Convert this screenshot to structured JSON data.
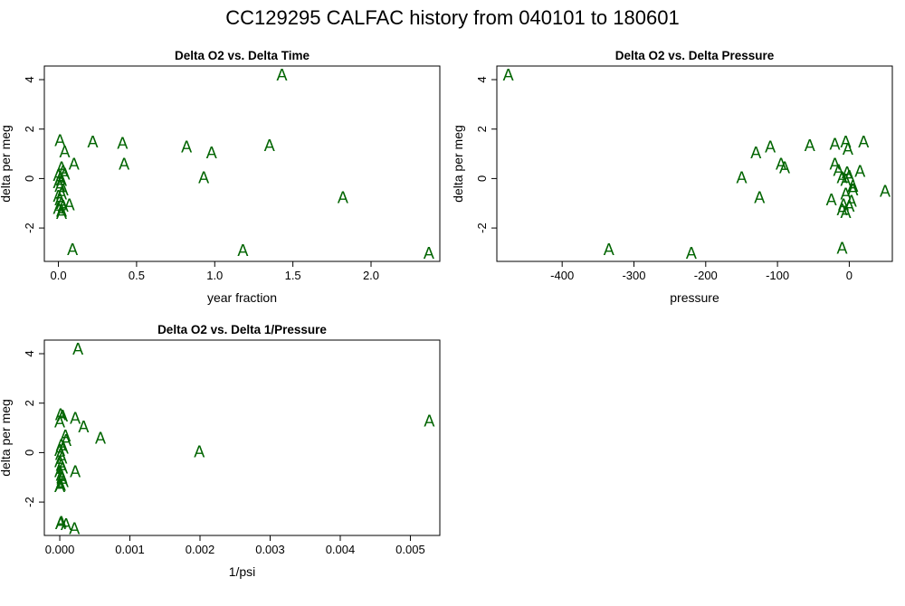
{
  "title": "CC129295   CALFAC history from  040101  to  180601",
  "colors": {
    "points": "#006400",
    "axis": "#000000"
  },
  "chart_data": [
    {
      "type": "scatter",
      "title": "Delta O2 vs. Delta Time",
      "xlabel": "year fraction",
      "ylabel": "delta per meg",
      "marker": "A",
      "xlim": [
        -0.09,
        2.44
      ],
      "ylim": [
        -3.35,
        4.55
      ],
      "xticks": [
        0.0,
        0.5,
        1.0,
        1.5,
        2.0
      ],
      "xtick_labels": [
        "0.0",
        "0.5",
        "1.0",
        "1.5",
        "2.0"
      ],
      "yticks": [
        -2,
        0,
        2,
        4
      ],
      "ytick_labels": [
        "-2",
        "0",
        "2",
        "4"
      ],
      "x": [
        1.43,
        0.01,
        0.22,
        0.41,
        0.82,
        0.98,
        1.35,
        0.04,
        0.42,
        0.1,
        0.93,
        0.02,
        0.03,
        0.0,
        0.01,
        0.02,
        0.04,
        0.0,
        0.01,
        0.03,
        0.02,
        0.0,
        0.01,
        0.02,
        0.03,
        0.07,
        0.0,
        0.02,
        0.02,
        1.82,
        0.09,
        1.18,
        2.37
      ],
      "y": [
        4.2,
        1.55,
        1.5,
        1.45,
        1.3,
        1.05,
        1.35,
        1.1,
        0.6,
        0.6,
        0.05,
        0.45,
        0.3,
        0.15,
        0.0,
        -0.05,
        0.2,
        -0.15,
        -0.3,
        -0.45,
        -0.6,
        -0.7,
        -0.85,
        -1.0,
        -1.1,
        -1.05,
        -1.2,
        -1.3,
        -1.4,
        -0.75,
        -2.85,
        -2.9,
        -3.0
      ]
    },
    {
      "type": "scatter",
      "title": "Delta O2 vs. Delta Pressure",
      "xlabel": "pressure",
      "ylabel": "delta per meg",
      "marker": "A",
      "xlim": [
        -491,
        60
      ],
      "ylim": [
        -3.35,
        4.55
      ],
      "xticks": [
        -400,
        -300,
        -200,
        -100,
        0
      ],
      "xtick_labels": [
        "-400",
        "-300",
        "-200",
        "-100",
        "0"
      ],
      "yticks": [
        -2,
        0,
        2,
        4
      ],
      "ytick_labels": [
        "-2",
        "0",
        "2",
        "4"
      ],
      "x": [
        -475,
        -55,
        -20,
        -5,
        20,
        -2,
        -110,
        -130,
        -95,
        -90,
        -150,
        -20,
        -15,
        -3,
        15,
        -10,
        -5,
        0,
        5,
        50,
        -5,
        5,
        3,
        -125,
        -25,
        -8,
        -10,
        0,
        -5,
        -335,
        -10,
        -220
      ],
      "y": [
        4.2,
        1.35,
        1.4,
        1.5,
        1.5,
        1.2,
        1.3,
        1.05,
        0.6,
        0.45,
        0.05,
        0.6,
        0.35,
        0.25,
        0.3,
        0.05,
        -0.05,
        0.1,
        -0.3,
        -0.5,
        -0.6,
        -0.45,
        -0.9,
        -0.75,
        -0.85,
        -1.05,
        -1.25,
        -1.1,
        -1.35,
        -2.85,
        -2.8,
        -3.0
      ]
    },
    {
      "type": "scatter",
      "title": "Delta O2 vs. Delta 1/Pressure",
      "xlabel": "1/psi",
      "ylabel": "delta per meg",
      "marker": "A",
      "xlim": [
        -0.00022,
        0.00542
      ],
      "ylim": [
        -3.35,
        4.55
      ],
      "xticks": [
        0.0,
        0.001,
        0.002,
        0.003,
        0.004,
        0.005
      ],
      "xtick_labels": [
        "0.000",
        "0.001",
        "0.002",
        "0.003",
        "0.004",
        "0.005"
      ],
      "yticks": [
        -2,
        0,
        2,
        4
      ],
      "ytick_labels": [
        "-2",
        "0",
        "2",
        "4"
      ],
      "x": [
        0.00026,
        1e-05,
        4e-05,
        0.00022,
        0.00034,
        0.0,
        0.00527,
        8e-05,
        9e-05,
        0.00058,
        0.00199,
        2e-05,
        5e-05,
        0.0,
        1e-05,
        3e-05,
        0.0,
        2e-05,
        4e-05,
        0.0,
        2e-05,
        0.00022,
        3e-05,
        5e-05,
        1e-05,
        3e-05,
        0.0,
        2e-05,
        1e-05,
        9e-05,
        0.00021
      ],
      "y": [
        4.2,
        1.55,
        1.5,
        1.4,
        1.05,
        1.25,
        1.3,
        0.7,
        0.5,
        0.6,
        0.05,
        0.3,
        0.2,
        0.1,
        -0.05,
        -0.2,
        -0.35,
        -0.5,
        -0.6,
        -0.75,
        -0.9,
        -0.75,
        -1.05,
        -1.15,
        -1.3,
        -1.0,
        -1.35,
        -2.8,
        -2.85,
        -2.9,
        -3.05
      ]
    }
  ]
}
